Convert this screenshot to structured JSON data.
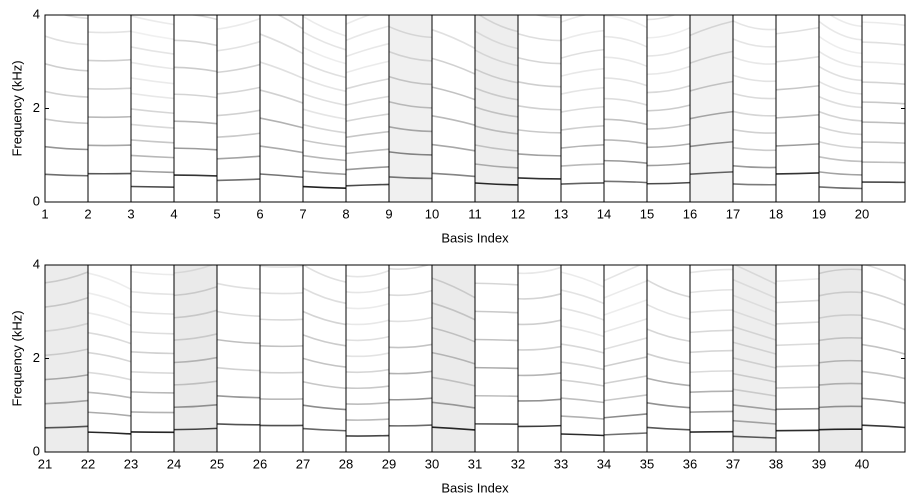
{
  "chart_data": [
    {
      "type": "basis-image",
      "xlabel": "Basis Index",
      "ylabel": "Frequency (kHz)",
      "xlim": [
        1,
        21
      ],
      "xticks": [
        1,
        2,
        3,
        4,
        5,
        6,
        7,
        8,
        9,
        10,
        11,
        12,
        13,
        14,
        15,
        16,
        17,
        18,
        19,
        20
      ],
      "ylim": [
        0,
        4
      ],
      "yticks": [
        0,
        2,
        4
      ],
      "grid": true
    },
    {
      "type": "basis-image",
      "xlabel": "Basis Index",
      "ylabel": "Frequency (kHz)",
      "xlim": [
        21,
        41
      ],
      "xticks": [
        21,
        22,
        23,
        24,
        25,
        26,
        27,
        28,
        29,
        30,
        31,
        32,
        33,
        34,
        35,
        36,
        37,
        38,
        39,
        40
      ],
      "ylim": [
        0,
        4
      ],
      "yticks": [
        0,
        2,
        4
      ],
      "grid": true
    }
  ]
}
